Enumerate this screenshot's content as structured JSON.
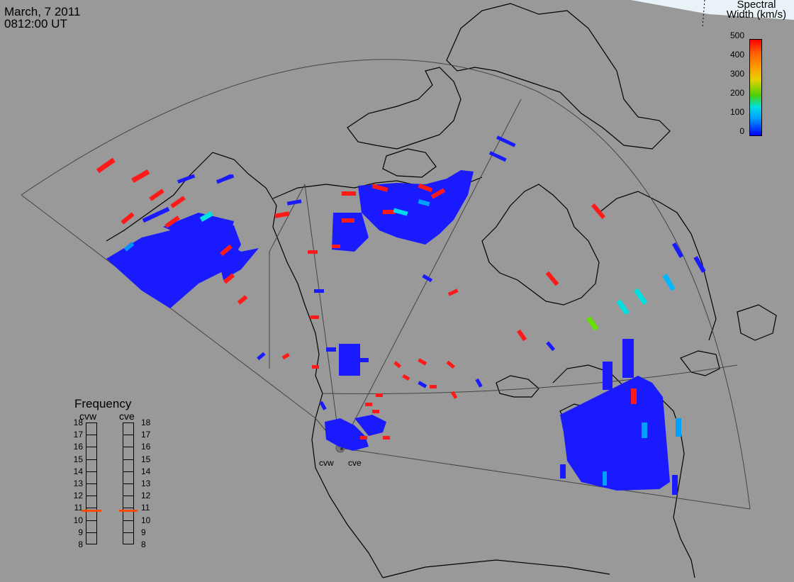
{
  "header": {
    "date": "March, 7 2011",
    "time": "0812:00 UT"
  },
  "colorbar": {
    "title_line1": "Spectral",
    "title_line2": "Width (km/s)",
    "ticks": [
      "500",
      "400",
      "300",
      "200",
      "100",
      "0"
    ],
    "colors": [
      "#ff0000",
      "#ff6000",
      "#ff9900",
      "#e6d000",
      "#4cd000",
      "#00e0e0",
      "#00a0ff",
      "#0000ff"
    ]
  },
  "frequency": {
    "title": "Frequency",
    "radars": [
      "cvw",
      "cve"
    ],
    "scale": [
      "18",
      "17",
      "16",
      "15",
      "14",
      "13",
      "12",
      "11",
      "10",
      "9",
      "8"
    ],
    "cvw_mhz": 10.8,
    "cve_mhz": 10.8
  },
  "sites": {
    "cvw": "cvw",
    "cve": "cve"
  },
  "colors": {
    "background": "#999999",
    "land_outline": "#000000",
    "fov_outline": "#444444",
    "low_width": "#1a1aff",
    "high_width": "#ff1a1a",
    "marker": "#ff4a00"
  }
}
